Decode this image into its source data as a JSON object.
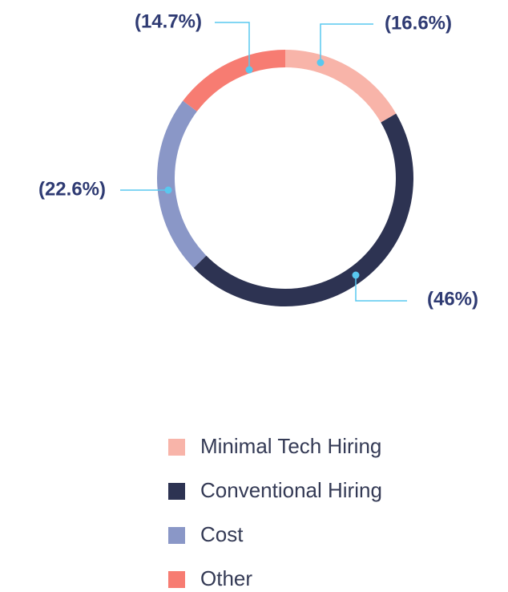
{
  "chart_data": {
    "type": "donut",
    "categories": [
      "Minimal Tech Hiring",
      "Conventional Hiring",
      "Cost",
      "Other"
    ],
    "values": [
      16.6,
      46,
      22.6,
      14.7
    ],
    "value_labels": [
      "(16.6%)",
      "(46%)",
      "(22.6%)",
      "(14.7%)"
    ],
    "colors": [
      "#f8b4a9",
      "#2d3352",
      "#8a97c7",
      "#f77c72"
    ],
    "legend": "bottom"
  }
}
